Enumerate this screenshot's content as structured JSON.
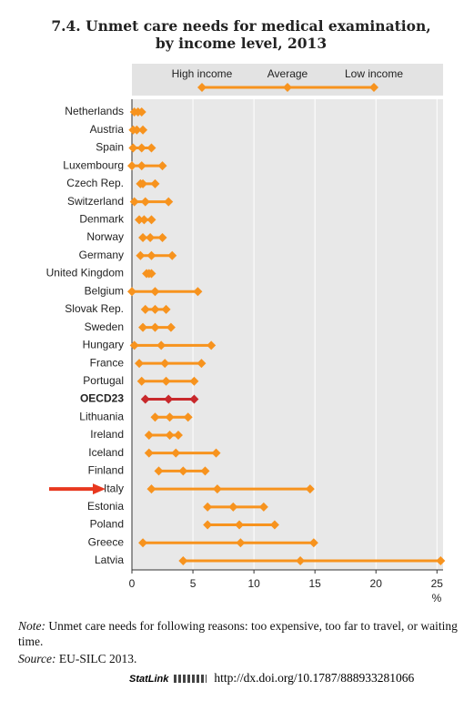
{
  "chart_data": {
    "type": "dot",
    "title": [
      "7.4.  Unmet care needs for medical examination,",
      "by income level, 2013"
    ],
    "categories": [
      "Netherlands",
      "Austria",
      "Spain",
      "Luxembourg",
      "Czech Rep.",
      "Switzerland",
      "Denmark",
      "Norway",
      "Germany",
      "United Kingdom",
      "Belgium",
      "Slovak Rep.",
      "Sweden",
      "Hungary",
      "France",
      "Portugal",
      "OECD23",
      "Lithuania",
      "Ireland",
      "Iceland",
      "Finland",
      "Italy",
      "Estonia",
      "Poland",
      "Greece",
      "Latvia"
    ],
    "series": [
      {
        "name": "High income",
        "values": [
          0.2,
          0.1,
          0.1,
          0.0,
          0.7,
          0.2,
          0.6,
          0.9,
          0.7,
          1.2,
          0.0,
          1.1,
          0.9,
          0.2,
          0.6,
          0.8,
          1.1,
          1.9,
          1.4,
          1.4,
          2.2,
          1.6,
          6.2,
          6.2,
          0.9,
          4.2
        ]
      },
      {
        "name": "Average",
        "values": [
          0.5,
          0.4,
          0.8,
          0.8,
          0.9,
          1.1,
          1.0,
          1.5,
          1.6,
          1.4,
          1.9,
          1.9,
          1.9,
          2.4,
          2.7,
          2.8,
          3.0,
          3.1,
          3.1,
          3.6,
          4.2,
          7.0,
          8.3,
          8.8,
          8.9,
          13.8
        ]
      },
      {
        "name": "Low income",
        "values": [
          0.8,
          0.9,
          1.6,
          2.5,
          1.9,
          3.0,
          1.6,
          2.5,
          3.3,
          1.6,
          5.4,
          2.8,
          3.2,
          6.5,
          5.7,
          5.1,
          5.1,
          4.6,
          3.8,
          6.9,
          6.0,
          14.6,
          10.8,
          11.7,
          14.9,
          25.3
        ]
      }
    ],
    "color": "#f7931e",
    "highlight": {
      "category": "OECD23",
      "color": "#c8282b"
    },
    "arrow": {
      "category": "Italy",
      "color": "#e8381f"
    },
    "xlim": [
      0,
      25.5
    ],
    "xticks": [
      0,
      5,
      10,
      15,
      20,
      25
    ],
    "x_unit": "%",
    "grid": true
  },
  "note": {
    "label": "Note:",
    "text": "Unmet care needs for following reasons: too expensive, too far to travel, or waiting time."
  },
  "source": {
    "label": "Source:",
    "text": "EU-SILC 2013."
  },
  "statlink": {
    "label": "StatLink",
    "url": "http://dx.doi.org/10.1787/888933281066"
  }
}
